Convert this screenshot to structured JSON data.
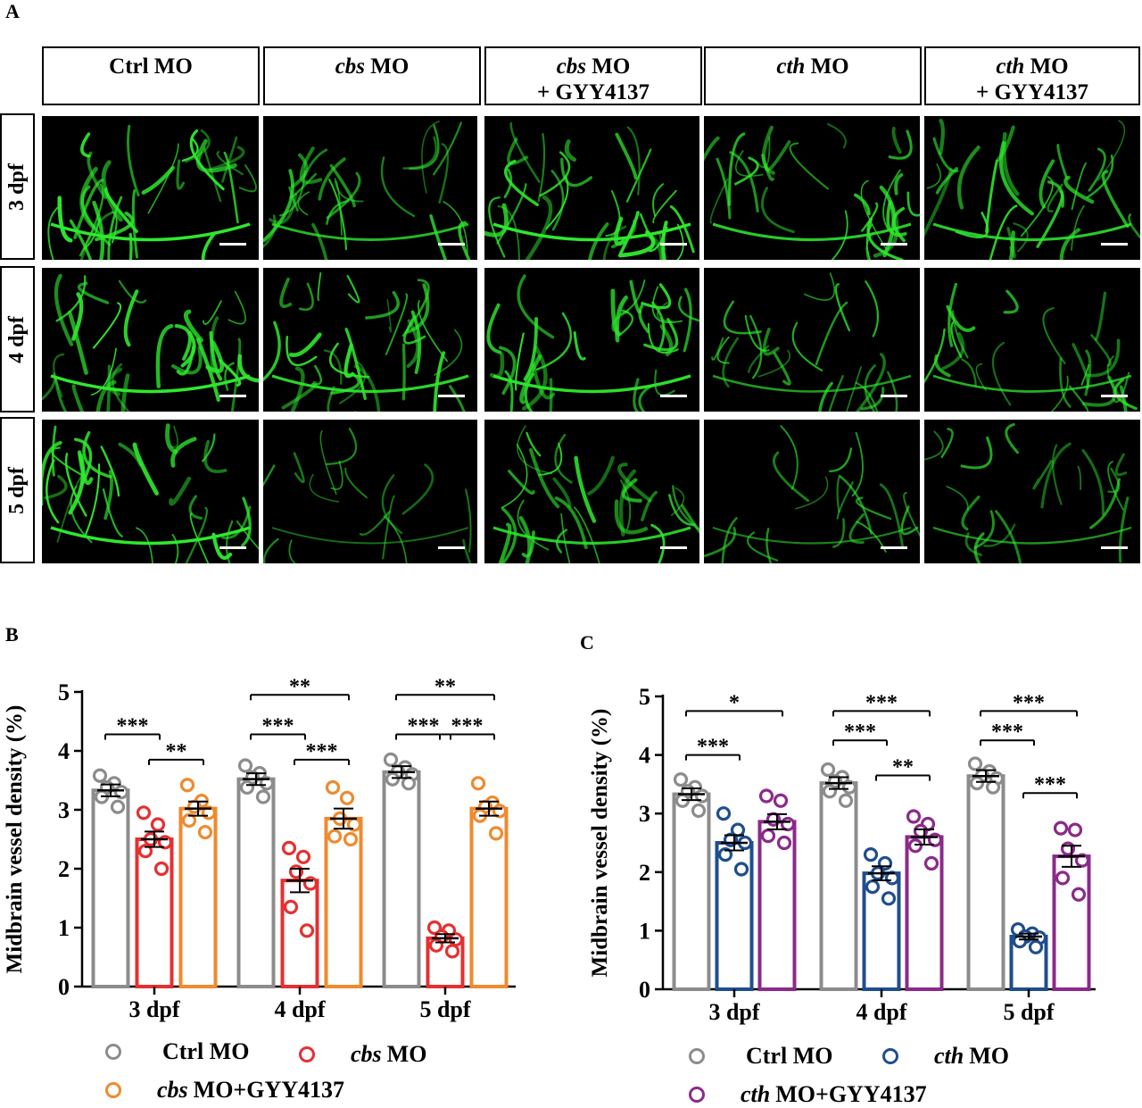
{
  "figure": {
    "panel_a_letter": "A",
    "panel_b_letter": "B",
    "panel_c_letter": "C",
    "columns": [
      {
        "italic": "",
        "text": "Ctrl MO",
        "line2": ""
      },
      {
        "italic": "cbs",
        "text": " MO",
        "line2": ""
      },
      {
        "italic": "cbs",
        "text": " MO",
        "line2": "+ GYY4137"
      },
      {
        "italic": "cth",
        "text": " MO",
        "line2": ""
      },
      {
        "italic": "cth",
        "text": " MO",
        "line2": "+ GYY4137"
      }
    ],
    "rows": [
      "3 dpf",
      "4 dpf",
      "5 dpf"
    ],
    "colors": {
      "vessel": "#2ee82e",
      "background": "#000000"
    }
  },
  "chart_data": [
    {
      "type": "bar",
      "panel": "B",
      "ylabel": "Midbrain vessel density (%)",
      "xlabel": "",
      "categories": [
        "3 dpf",
        "4 dpf",
        "5 dpf"
      ],
      "ylim": [
        0,
        5
      ],
      "yticks": [
        "0",
        "1",
        "2",
        "3",
        "4",
        "5"
      ],
      "grid": false,
      "legend_position": "bottom",
      "series": [
        {
          "name": "Ctrl MO",
          "name_italic": "",
          "name_rest": "Ctrl MO",
          "color": "#8c8c8c",
          "values": [
            3.33,
            3.52,
            3.64
          ],
          "sem": [
            0.1,
            0.1,
            0.1
          ],
          "points": [
            [
              3.58,
              3.45,
              3.38,
              3.3,
              3.22,
              3.05
            ],
            [
              3.75,
              3.62,
              3.55,
              3.45,
              3.38,
              3.22
            ],
            [
              3.85,
              3.72,
              3.65,
              3.6,
              3.52,
              3.45
            ]
          ]
        },
        {
          "name": "cbs MO",
          "name_italic": "cbs",
          "name_rest": " MO",
          "color": "#e53030",
          "values": [
            2.5,
            1.8,
            0.82
          ],
          "sem": [
            0.13,
            0.2,
            0.07
          ],
          "points": [
            [
              2.95,
              2.75,
              2.5,
              2.45,
              2.3,
              2.0
            ],
            [
              2.35,
              2.2,
              1.95,
              1.75,
              1.35,
              0.95
            ],
            [
              1.0,
              0.95,
              0.85,
              0.8,
              0.7,
              0.6
            ]
          ]
        },
        {
          "name": "cbs MO+GYY4137",
          "name_italic": "cbs",
          "name_rest": " MO+GYY4137",
          "color": "#ef8a2e",
          "values": [
            3.02,
            2.85,
            3.02
          ],
          "sem": [
            0.12,
            0.17,
            0.12
          ],
          "points": [
            [
              3.42,
              3.15,
              3.05,
              2.95,
              2.82,
              2.62
            ],
            [
              3.38,
              3.2,
              2.85,
              2.75,
              2.55,
              2.5
            ],
            [
              3.45,
              3.12,
              3.05,
              2.98,
              2.9,
              2.6
            ]
          ]
        }
      ],
      "annotations": [
        {
          "label": "***",
          "from": 0,
          "to": 1,
          "group": 0,
          "y": 4.28
        },
        {
          "label": "**",
          "from": 1,
          "to": 2,
          "group": 0,
          "y": 3.85
        },
        {
          "label": "***",
          "from": 0,
          "to": 1,
          "group": 1,
          "y": 4.28
        },
        {
          "label": "**",
          "from": 0,
          "to": 2,
          "group": 1,
          "y": 4.95
        },
        {
          "label": "***",
          "from": 1,
          "to": 2,
          "group": 1,
          "y": 3.85
        },
        {
          "label": "***",
          "from": 0,
          "to": 1,
          "group": 2,
          "y": 4.28
        },
        {
          "label": "**",
          "from": 0,
          "to": 2,
          "group": 2,
          "y": 4.95
        },
        {
          "label": "***",
          "from": 1,
          "to": 2,
          "group": 2,
          "y": 4.28
        }
      ]
    },
    {
      "type": "bar",
      "panel": "C",
      "ylabel": "Midbrain vessel density (%)",
      "xlabel": "",
      "categories": [
        "3 dpf",
        "4 dpf",
        "5 dpf"
      ],
      "ylim": [
        0,
        5
      ],
      "yticks": [
        "0",
        "1",
        "2",
        "3",
        "4",
        "5"
      ],
      "grid": false,
      "legend_position": "bottom",
      "series": [
        {
          "name": "Ctrl MO",
          "name_italic": "",
          "name_rest": "Ctrl MO",
          "color": "#8c8c8c",
          "values": [
            3.33,
            3.52,
            3.64
          ],
          "sem": [
            0.1,
            0.1,
            0.1
          ],
          "points": [
            [
              3.58,
              3.45,
              3.38,
              3.3,
              3.22,
              3.05
            ],
            [
              3.75,
              3.62,
              3.55,
              3.45,
              3.38,
              3.22
            ],
            [
              3.85,
              3.72,
              3.65,
              3.6,
              3.52,
              3.45
            ]
          ]
        },
        {
          "name": "cth MO",
          "name_italic": "cth",
          "name_rest": " MO",
          "color": "#1f4e8c",
          "values": [
            2.5,
            1.98,
            0.9
          ],
          "sem": [
            0.13,
            0.12,
            0.05
          ],
          "points": [
            [
              3.0,
              2.72,
              2.55,
              2.5,
              2.3,
              2.05
            ],
            [
              2.3,
              2.15,
              1.98,
              1.9,
              1.75,
              1.55
            ],
            [
              1.02,
              0.95,
              0.9,
              0.88,
              0.82,
              0.72
            ]
          ]
        },
        {
          "name": "cth MO+GYY4137",
          "name_italic": "cth",
          "name_rest": " MO+GYY4137",
          "color": "#8b2a8b",
          "values": [
            2.86,
            2.6,
            2.27
          ],
          "sem": [
            0.13,
            0.13,
            0.18
          ],
          "points": [
            [
              3.3,
              3.22,
              2.9,
              2.82,
              2.62,
              2.5
            ],
            [
              2.95,
              2.82,
              2.7,
              2.55,
              2.45,
              2.15
            ],
            [
              2.75,
              2.72,
              2.4,
              2.2,
              1.9,
              1.62
            ]
          ]
        }
      ],
      "annotations": [
        {
          "label": "***",
          "from": 0,
          "to": 1,
          "group": 0,
          "y": 4.0
        },
        {
          "label": "*",
          "from": 0,
          "to": 2,
          "group": 0,
          "y": 4.75
        },
        {
          "label": "***",
          "from": 0,
          "to": 1,
          "group": 1,
          "y": 4.25
        },
        {
          "label": "***",
          "from": 0,
          "to": 2,
          "group": 1,
          "y": 4.75
        },
        {
          "label": "**",
          "from": 1,
          "to": 2,
          "group": 1,
          "y": 3.65
        },
        {
          "label": "***",
          "from": 0,
          "to": 1,
          "group": 2,
          "y": 4.25
        },
        {
          "label": "***",
          "from": 0,
          "to": 2,
          "group": 2,
          "y": 4.75
        },
        {
          "label": "***",
          "from": 1,
          "to": 2,
          "group": 2,
          "y": 3.35
        }
      ]
    }
  ]
}
